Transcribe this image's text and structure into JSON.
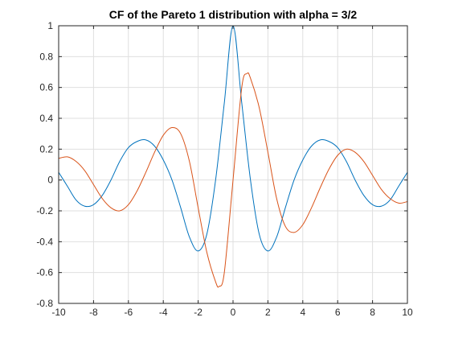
{
  "chart_data": {
    "type": "line",
    "title": "CF of the Pareto 1 distribution with alpha = 3/2",
    "xlabel": "",
    "ylabel": "",
    "xlim": [
      -10,
      10
    ],
    "ylim": [
      -0.8,
      1
    ],
    "grid": true,
    "xticks": [
      -10,
      -8,
      -6,
      -4,
      -2,
      0,
      2,
      4,
      6,
      8,
      10
    ],
    "yticks": [
      -0.8,
      -0.6,
      -0.4,
      -0.2,
      0,
      0.2,
      0.4,
      0.6,
      0.8,
      1
    ],
    "xtick_labels": [
      "-10",
      "-8",
      "-6",
      "-4",
      "-2",
      "0",
      "2",
      "4",
      "6",
      "8",
      "10"
    ],
    "ytick_labels": [
      "-0.8",
      "-0.6",
      "-0.4",
      "-0.2",
      "0",
      "0.2",
      "0.4",
      "0.6",
      "0.8",
      "1"
    ],
    "series": [
      {
        "color": "#0072BD",
        "x": [
          -10,
          -9.5,
          -9,
          -8.5,
          -8,
          -7.5,
          -7,
          -6.5,
          -6,
          -5.5,
          -5,
          -4.5,
          -4,
          -3.5,
          -3,
          -2.5,
          -2,
          -1.5,
          -1,
          -0.5,
          0,
          0.5,
          1,
          1.5,
          2,
          2.5,
          3,
          3.5,
          4,
          4.5,
          5,
          5.5,
          6,
          6.5,
          7,
          7.5,
          8,
          8.5,
          9,
          9.5,
          10
        ],
        "y": [
          0.05,
          -0.04,
          -0.13,
          -0.17,
          -0.16,
          -0.1,
          0.0,
          0.12,
          0.21,
          0.25,
          0.26,
          0.22,
          0.13,
          0.0,
          -0.18,
          -0.37,
          -0.46,
          -0.35,
          0.0,
          0.5,
          1.0,
          0.5,
          0.0,
          -0.35,
          -0.46,
          -0.37,
          -0.18,
          0.0,
          0.13,
          0.22,
          0.26,
          0.25,
          0.21,
          0.12,
          0.0,
          -0.1,
          -0.16,
          -0.17,
          -0.13,
          -0.04,
          0.05
        ]
      },
      {
        "color": "#D95319",
        "x": [
          -10,
          -9.5,
          -9,
          -8.5,
          -8,
          -7.5,
          -7,
          -6.5,
          -6,
          -5.5,
          -5,
          -4.5,
          -4,
          -3.5,
          -3,
          -2.5,
          -2,
          -1.5,
          -1,
          -0.8,
          -0.5,
          0,
          0.5,
          0.8,
          1,
          1.5,
          2,
          2.5,
          3,
          3.5,
          4,
          4.5,
          5,
          5.5,
          6,
          6.5,
          7,
          7.5,
          8,
          8.5,
          9,
          9.5,
          10
        ],
        "y": [
          0.14,
          0.15,
          0.12,
          0.06,
          -0.03,
          -0.12,
          -0.18,
          -0.2,
          -0.16,
          -0.07,
          0.05,
          0.18,
          0.29,
          0.34,
          0.3,
          0.12,
          -0.18,
          -0.47,
          -0.66,
          -0.69,
          -0.6,
          0.0,
          0.6,
          0.69,
          0.66,
          0.47,
          0.18,
          -0.12,
          -0.3,
          -0.34,
          -0.29,
          -0.18,
          -0.05,
          0.07,
          0.16,
          0.2,
          0.18,
          0.12,
          0.03,
          -0.06,
          -0.12,
          -0.15,
          -0.14
        ]
      }
    ]
  }
}
